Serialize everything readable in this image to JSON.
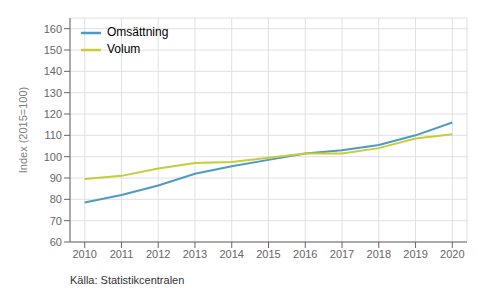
{
  "chart_data": {
    "type": "line",
    "ylabel": "Index (2015=100)",
    "x": [
      2010,
      2011,
      2012,
      2013,
      2014,
      2015,
      2016,
      2017,
      2018,
      2019,
      2020
    ],
    "series": [
      {
        "name": "Omsättning",
        "color": "#4e9ac4",
        "values": [
          78.5,
          82.0,
          86.5,
          92.0,
          95.5,
          98.5,
          101.5,
          103.0,
          105.5,
          110.0,
          116.0
        ]
      },
      {
        "name": "Volum",
        "color": "#c8cc38",
        "values": [
          89.5,
          91.0,
          94.5,
          97.0,
          97.5,
          99.5,
          101.5,
          101.5,
          104.0,
          108.5,
          110.5
        ]
      }
    ],
    "xlim": [
      2009.6,
      2020.4
    ],
    "xticks": [
      2010,
      2011,
      2012,
      2013,
      2014,
      2015,
      2016,
      2017,
      2018,
      2019,
      2020
    ],
    "ylim": [
      60,
      165
    ],
    "yticks": [
      60,
      70,
      80,
      90,
      100,
      110,
      120,
      130,
      140,
      150,
      160
    ],
    "grid": true,
    "legend": "upper left",
    "annotations": [
      "Källa: Statistikcentralen"
    ]
  }
}
